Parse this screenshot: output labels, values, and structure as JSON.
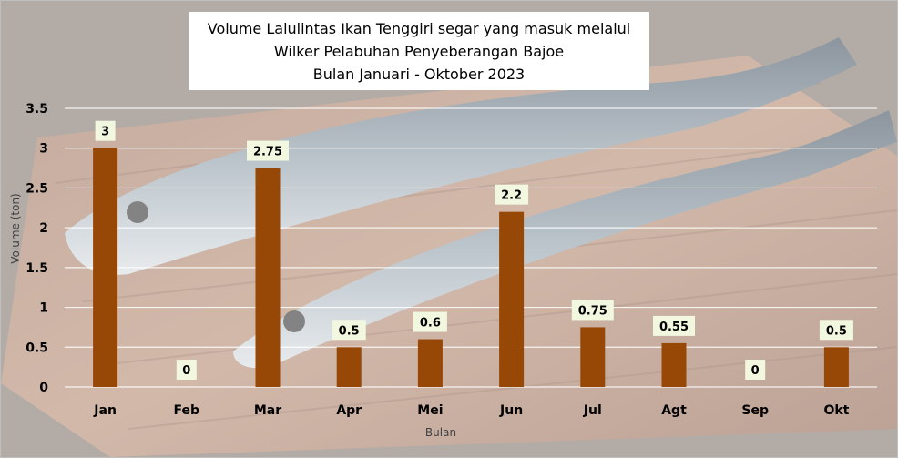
{
  "title_lines": [
    "Volume Lalulintas Ikan Tenggiri segar yang masuk melalui",
    "Wilker Pelabuhan Penyeberangan Bajoe",
    "Bulan Januari - Oktober 2023"
  ],
  "colors": {
    "bar": "#974706",
    "label_bg": "#f2f7df",
    "grid": "#ffffff"
  },
  "chart_data": {
    "type": "bar",
    "title": "Volume Lalulintas Ikan Tenggiri segar yang masuk melalui Wilker Pelabuhan Penyeberangan Bajoe Bulan Januari - Oktober 2023",
    "categories": [
      "Jan",
      "Feb",
      "Mar",
      "Apr",
      "Mei",
      "Jun",
      "Jul",
      "Agt",
      "Sep",
      "Okt"
    ],
    "values": [
      3,
      0,
      2.75,
      0.5,
      0.6,
      2.2,
      0.75,
      0.55,
      0,
      0.5
    ],
    "value_labels": [
      "3",
      "0",
      "2.75",
      "0.5",
      "0.6",
      "2.2",
      "0.75",
      "0.55",
      "0",
      "0.5"
    ],
    "xlabel": "Bulan",
    "ylabel": "Volume (ton)",
    "ylim": [
      0,
      3.5
    ],
    "yticks": [
      0,
      0.5,
      1,
      1.5,
      2,
      2.5,
      3,
      3.5
    ],
    "ytick_labels": [
      "0",
      "0.5",
      "1",
      "1.5",
      "2",
      "2.5",
      "3",
      "3.5"
    ],
    "grid": true,
    "legend": "none",
    "background": "photo of mackerel fish on a wooden cutting board"
  }
}
